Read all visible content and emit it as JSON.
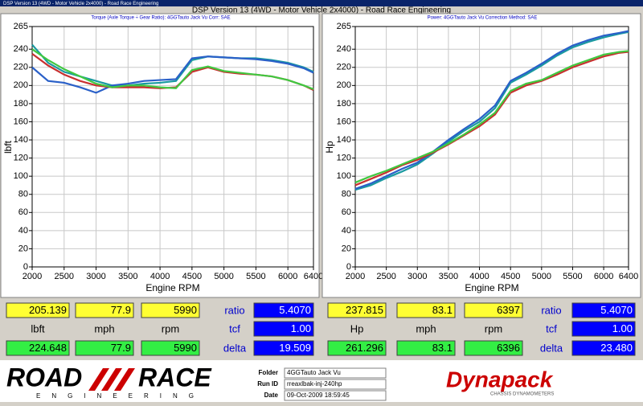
{
  "window_title": "DSP Version 13 (4WD - Motor Vehicle 2x4000) - Road Race Engineering",
  "app_title": "DSP Version 13 (4WD - Motor Vehicle 2x4000) - Road Race Engineering",
  "chart_data": [
    {
      "type": "line",
      "title": "Torque (Axle Torque ÷ Gear Ratio): 4GGTauto Jack Vu     Corr: SAE",
      "x_label": "Engine RPM",
      "y_label": "lbft",
      "x": [
        2000,
        2250,
        2500,
        2750,
        3000,
        3250,
        3500,
        3750,
        4000,
        4250,
        4500,
        4750,
        5000,
        5250,
        5500,
        5750,
        6000,
        6250,
        6400
      ],
      "series": [
        {
          "color": "#1a9aa0",
          "values": [
            245,
            225,
            215,
            210,
            205,
            200,
            200,
            202,
            203,
            205,
            228,
            232,
            231,
            230,
            230,
            228,
            225,
            220,
            215
          ]
        },
        {
          "color": "#2a60c8",
          "values": [
            220,
            205,
            203,
            198,
            192,
            200,
            202,
            205,
            206,
            207,
            230,
            232,
            231,
            230,
            229,
            227,
            224,
            219,
            214
          ]
        },
        {
          "color": "#c83030",
          "values": [
            235,
            222,
            212,
            205,
            200,
            198,
            198,
            198,
            197,
            198,
            215,
            220,
            215,
            213,
            212,
            210,
            206,
            200,
            195
          ]
        },
        {
          "color": "#40c840",
          "values": [
            240,
            228,
            218,
            210,
            202,
            198,
            200,
            200,
            198,
            197,
            217,
            221,
            216,
            214,
            212,
            210,
            206,
            200,
            196
          ]
        }
      ],
      "xlim": [
        2000,
        6400
      ],
      "xticks": [
        2000,
        2500,
        3000,
        3500,
        4000,
        4500,
        5000,
        5500,
        6000,
        6400
      ],
      "ylim": [
        0,
        265
      ],
      "yticks": [
        0,
        20,
        40,
        60,
        80,
        100,
        120,
        140,
        160,
        180,
        200,
        220,
        240,
        265
      ],
      "grid": true
    },
    {
      "type": "line",
      "title": "Power: 4GGTauto Jack Vu     Correction Method: SAE",
      "x_label": "Engine RPM",
      "y_label": "Hp",
      "x": [
        2000,
        2250,
        2500,
        2750,
        3000,
        3250,
        3500,
        3750,
        4000,
        4250,
        4500,
        4750,
        5000,
        5250,
        5500,
        5750,
        6000,
        6250,
        6400
      ],
      "series": [
        {
          "color": "#1a9aa0",
          "values": [
            85,
            90,
            98,
            105,
            113,
            125,
            138,
            150,
            160,
            175,
            203,
            212,
            222,
            233,
            242,
            248,
            253,
            257,
            259
          ]
        },
        {
          "color": "#2a60c8",
          "values": [
            86,
            92,
            100,
            108,
            115,
            127,
            140,
            152,
            163,
            178,
            205,
            214,
            224,
            235,
            244,
            250,
            255,
            258,
            260
          ]
        },
        {
          "color": "#c83030",
          "values": [
            90,
            97,
            104,
            112,
            118,
            126,
            135,
            145,
            155,
            168,
            192,
            200,
            205,
            212,
            220,
            226,
            232,
            236,
            237
          ]
        },
        {
          "color": "#40c840",
          "values": [
            93,
            100,
            106,
            113,
            120,
            127,
            136,
            146,
            157,
            170,
            194,
            202,
            206,
            214,
            222,
            228,
            234,
            237,
            238
          ]
        }
      ],
      "xlim": [
        2000,
        6400
      ],
      "xticks": [
        2000,
        2500,
        3000,
        3500,
        4000,
        4500,
        5000,
        5500,
        6000,
        6400
      ],
      "ylim": [
        0,
        265
      ],
      "yticks": [
        0,
        20,
        40,
        60,
        80,
        100,
        120,
        140,
        160,
        180,
        200,
        220,
        240,
        265
      ],
      "grid": true
    }
  ],
  "readouts": [
    [
      [
        "205.139",
        "77.9",
        "5990",
        "ratio",
        "5.4070"
      ],
      [
        "lbft",
        "mph",
        "rpm",
        "tcf",
        "1.00"
      ],
      [
        "224.648",
        "77.9",
        "5990",
        "delta",
        "19.509"
      ]
    ],
    [
      [
        "237.815",
        "83.1",
        "6397",
        "ratio",
        "5.4070"
      ],
      [
        "Hp",
        "mph",
        "rpm",
        "tcf",
        "1.00"
      ],
      [
        "261.296",
        "83.1",
        "6396",
        "delta",
        "23.480"
      ]
    ]
  ],
  "footer": {
    "logo_left": "ROAD",
    "logo_right": "RACE",
    "logo_sub": "ENGINEERING",
    "fields": [
      {
        "label": "Folder",
        "value": "4GGTauto Jack Vu"
      },
      {
        "label": "Run ID",
        "value": "rreaxlbak-inj-240hp"
      },
      {
        "label": "Date",
        "value": "09-Oct-2009  18:59:45"
      }
    ],
    "brand": "Dynapack",
    "brand_sub": "CHASSIS DYNAMOMETERS"
  }
}
